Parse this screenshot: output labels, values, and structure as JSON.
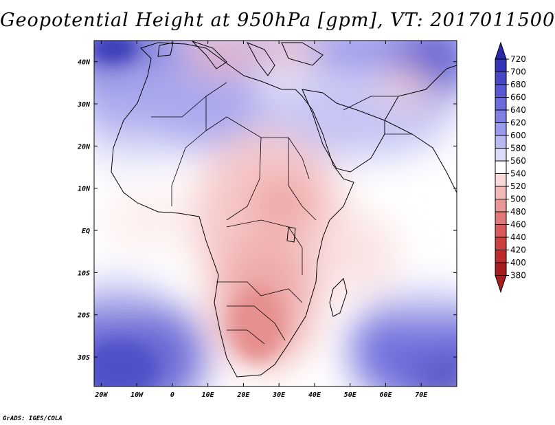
{
  "title": "Geopotential Height at 950hPa [gpm], VT: 2017011500",
  "credit": "GrADS: IGES/COLA",
  "map": {
    "lon_labels": [
      "20W",
      "10W",
      "0",
      "10E",
      "20E",
      "30E",
      "40E",
      "50E",
      "60E",
      "70E"
    ],
    "lat_labels": [
      "40N",
      "30N",
      "20N",
      "10N",
      "EQ",
      "10S",
      "20S",
      "30S"
    ],
    "lon_range": [
      -22,
      80
    ],
    "lat_range": [
      -37,
      45
    ]
  },
  "colorbar": {
    "levels": [
      "720",
      "700",
      "680",
      "660",
      "640",
      "620",
      "600",
      "580",
      "560",
      "540",
      "520",
      "500",
      "480",
      "460",
      "440",
      "420",
      "400",
      "380"
    ],
    "colors": {
      "720": "#2a2aa8",
      "700": "#3434b8",
      "680": "#4646c6",
      "660": "#5858d2",
      "640": "#6c6cdc",
      "620": "#8080e4",
      "600": "#9a9aec",
      "580": "#b8b8f2",
      "560": "#dcdcf8",
      "540": "#ffffff",
      "520": "#f9d8d8",
      "500": "#f2b8b8",
      "480": "#e89696",
      "460": "#e07878",
      "440": "#d85a5a",
      "420": "#cc4040",
      "400": "#bc2c2c",
      "380": "#a81e1e"
    }
  }
}
